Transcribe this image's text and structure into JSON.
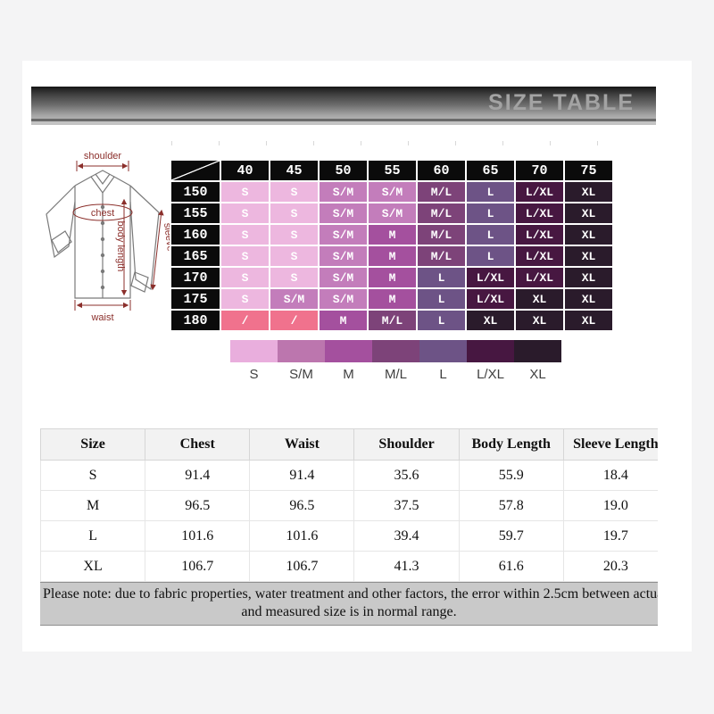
{
  "banner": {
    "title": "SIZE TABLE"
  },
  "shirt_diagram": {
    "labels": {
      "shoulder": "shoulder",
      "chest": "chest",
      "sleeve": "sleeve",
      "body_length": "body length",
      "waist": "waist"
    }
  },
  "matrix": {
    "col_headers": [
      "40",
      "45",
      "50",
      "55",
      "60",
      "65",
      "70",
      "75"
    ],
    "rows": [
      {
        "height": "150",
        "cells": [
          "S",
          "S",
          "S/M",
          "S/M",
          "M/L",
          "L",
          "L/XL",
          "XL"
        ]
      },
      {
        "height": "155",
        "cells": [
          "S",
          "S",
          "S/M",
          "S/M",
          "M/L",
          "L",
          "L/XL",
          "XL"
        ]
      },
      {
        "height": "160",
        "cells": [
          "S",
          "S",
          "S/M",
          "M",
          "M/L",
          "L",
          "L/XL",
          "XL"
        ]
      },
      {
        "height": "165",
        "cells": [
          "S",
          "S",
          "S/M",
          "M",
          "M/L",
          "L",
          "L/XL",
          "XL"
        ]
      },
      {
        "height": "170",
        "cells": [
          "S",
          "S",
          "S/M",
          "M",
          "L",
          "L/XL",
          "L/XL",
          "XL"
        ]
      },
      {
        "height": "175",
        "cells": [
          "S",
          "S/M",
          "S/M",
          "M",
          "L",
          "L/XL",
          "XL",
          "XL"
        ]
      },
      {
        "height": "180",
        "cells": [
          "/",
          "/",
          "M",
          "M/L",
          "L",
          "XL",
          "XL",
          "XL"
        ]
      }
    ],
    "cell_colors": {
      "S": "#edb7df",
      "S/M": "#c37dbb",
      "M": "#a4509e",
      "M/L": "#7d4379",
      "L": "#6d5386",
      "L/XL": "#471741",
      "XL": "#2a1b2b",
      "/": "#f0728d"
    }
  },
  "legend": {
    "items": [
      {
        "label": "S",
        "color": "#e9aedd"
      },
      {
        "label": "S/M",
        "color": "#bc76ae"
      },
      {
        "label": "M",
        "color": "#a4509e"
      },
      {
        "label": "M/L",
        "color": "#7d4379"
      },
      {
        "label": "L",
        "color": "#6d5386"
      },
      {
        "label": "L/XL",
        "color": "#471741"
      },
      {
        "label": "XL",
        "color": "#2a1b2b"
      }
    ]
  },
  "size_chart": {
    "headers": [
      "Size",
      "Chest",
      "Waist",
      "Shoulder",
      "Body Length",
      "Sleeve Length"
    ],
    "rows": [
      [
        "S",
        "91.4",
        "91.4",
        "35.6",
        "55.9",
        "18.4"
      ],
      [
        "M",
        "96.5",
        "96.5",
        "37.5",
        "57.8",
        "19.0"
      ],
      [
        "L",
        "101.6",
        "101.6",
        "39.4",
        "59.7",
        "19.7"
      ],
      [
        "XL",
        "106.7",
        "106.7",
        "41.3",
        "61.6",
        "20.3"
      ]
    ]
  },
  "note": {
    "line1": "Please note: due to fabric properties, water treatment and other factors, the error within 2.5cm between actual size",
    "line2": "and measured size is in normal range."
  }
}
